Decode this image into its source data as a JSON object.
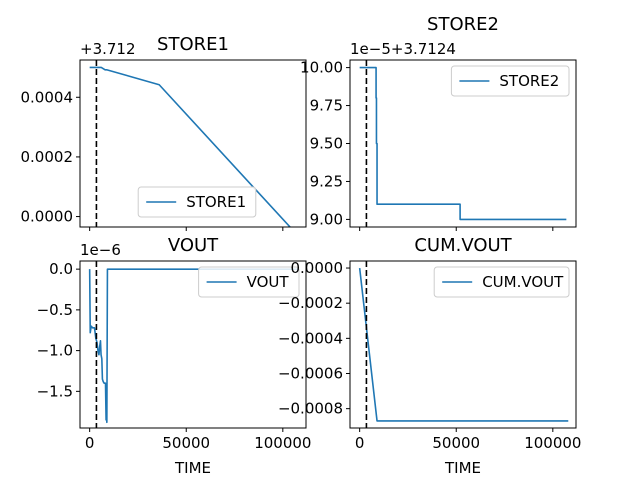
{
  "figure": {
    "background": "#ffffff",
    "line_color": "#1f77b4",
    "marker_color": "#000000"
  },
  "chart_data": [
    {
      "type": "line",
      "title": "STORE1",
      "xlabel": "",
      "ylabel": "",
      "offset_label": "+3.712",
      "xlim": [
        -5000,
        112000
      ],
      "ylim": [
        -3.5e-05,
        0.000525
      ],
      "x_ticks": [
        0,
        50000,
        100000
      ],
      "x_ticklabels_visible": false,
      "y_ticks": [
        0.0,
        0.0002,
        0.0004
      ],
      "y_ticklabels": [
        "0.0000",
        "0.0002",
        "0.0004"
      ],
      "vline_x": 3500,
      "legend": {
        "entries": [
          "STORE1"
        ],
        "loc": "lower center"
      },
      "series": [
        {
          "name": "STORE1",
          "x": [
            0,
            6000,
            8000,
            9000,
            36000,
            108000
          ],
          "y": [
            0.0005,
            0.0005,
            0.000492,
            0.000492,
            0.000442,
            -6.5e-05
          ]
        }
      ]
    },
    {
      "type": "line",
      "title": "STORE2",
      "xlabel": "",
      "ylabel": "",
      "offset_label": "1e−5+3.7124",
      "xlim": [
        -5000,
        112000
      ],
      "ylim": [
        8.95,
        10.05
      ],
      "x_ticks": [
        0,
        50000,
        100000
      ],
      "x_ticklabels_visible": false,
      "y_ticks": [
        9.0,
        9.25,
        9.5,
        9.75,
        10.0
      ],
      "y_ticklabels": [
        "9.00",
        "9.25",
        "9.50",
        "9.75",
        "10.00"
      ],
      "vline_x": 3500,
      "legend": {
        "entries": [
          "STORE2"
        ],
        "loc": "upper right"
      },
      "series": [
        {
          "name": "STORE2",
          "x": [
            0,
            8500,
            8500,
            8700,
            8700,
            9000,
            9000,
            52000,
            52000,
            107000
          ],
          "y": [
            10.0,
            10.0,
            9.8,
            9.8,
            9.5,
            9.5,
            9.1,
            9.1,
            9.0,
            9.0
          ]
        }
      ]
    },
    {
      "type": "line",
      "title": "VOUT",
      "xlabel": "TIME",
      "ylabel": "",
      "offset_label": "1e−6",
      "xlim": [
        -5000,
        112000
      ],
      "ylim": [
        -1.95,
        0.1
      ],
      "x_ticks": [
        0,
        50000,
        100000
      ],
      "x_ticklabels": [
        "0",
        "50000",
        "100000"
      ],
      "y_ticks": [
        0.0,
        -0.5,
        -1.0,
        -1.5
      ],
      "y_ticklabels": [
        "0.0",
        "−0.5",
        "−1.0",
        "−1.5"
      ],
      "vline_x": 3500,
      "legend": {
        "entries": [
          "VOUT"
        ],
        "loc": "upper right"
      },
      "series": [
        {
          "name": "VOUT",
          "x": [
            0,
            300,
            800,
            1500,
            2500,
            3200,
            3800,
            4300,
            4800,
            5200,
            5600,
            5900,
            6300,
            6600,
            7000,
            7500,
            8200,
            8500,
            8700,
            8900,
            9200,
            20000,
            108000
          ],
          "y": [
            0.0,
            -0.78,
            -0.7,
            -0.72,
            -0.72,
            -0.85,
            -0.9,
            -1.0,
            -1.05,
            -0.95,
            -0.88,
            -1.05,
            -1.1,
            -1.35,
            -1.38,
            -1.4,
            -1.4,
            -1.85,
            -1.8,
            -1.88,
            0.0,
            0.0,
            0.0
          ]
        }
      ]
    },
    {
      "type": "line",
      "title": "CUM.VOUT",
      "xlabel": "TIME",
      "ylabel": "",
      "offset_label": "",
      "xlim": [
        -5000,
        112000
      ],
      "ylim": [
        -0.00091,
        4e-05
      ],
      "x_ticks": [
        0,
        50000,
        100000
      ],
      "x_ticklabels": [
        "0",
        "50000",
        "100000"
      ],
      "y_ticks": [
        0.0,
        -0.0002,
        -0.0004,
        -0.0006,
        -0.0008
      ],
      "y_ticklabels": [
        "0.0000",
        "−0.0002",
        "−0.0004",
        "−0.0006",
        "−0.0008"
      ],
      "vline_x": 3500,
      "legend": {
        "entries": [
          "CUM.VOUT"
        ],
        "loc": "upper right"
      },
      "series": [
        {
          "name": "CUM.VOUT",
          "x": [
            0,
            9000,
            108000
          ],
          "y": [
            0.0,
            -0.00087,
            -0.00087
          ]
        }
      ]
    }
  ]
}
